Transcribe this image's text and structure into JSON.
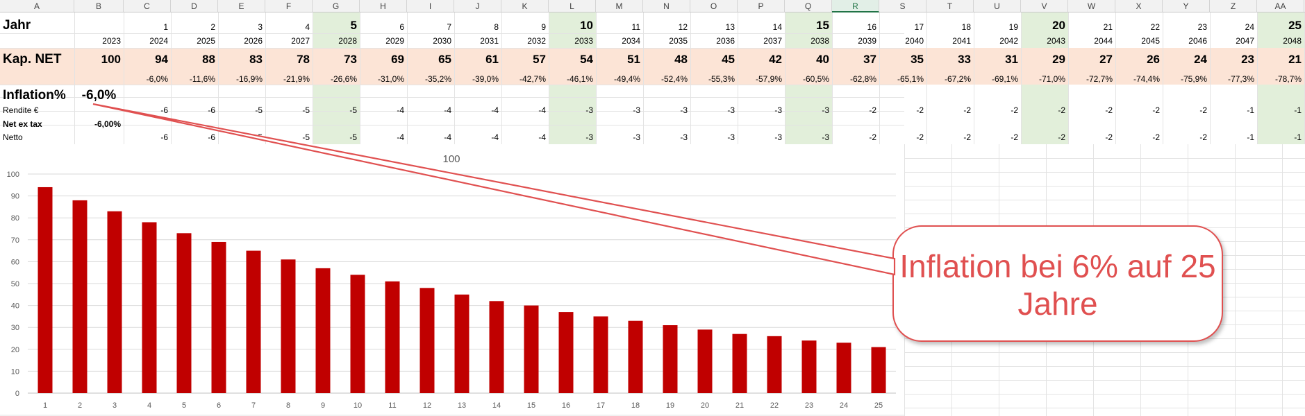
{
  "sheet": {
    "columns": [
      "A",
      "B",
      "C",
      "D",
      "E",
      "F",
      "G",
      "H",
      "I",
      "J",
      "K",
      "L",
      "M",
      "N",
      "O",
      "P",
      "Q",
      "R",
      "S",
      "T",
      "U",
      "V",
      "W",
      "X",
      "Y",
      "Z",
      "AA"
    ],
    "selected_column": "R",
    "highlight_columns": [
      "G",
      "L",
      "Q",
      "V",
      "AA"
    ],
    "row_jahr": {
      "label": "Jahr",
      "indices": [
        "1",
        "2",
        "3",
        "4",
        "5",
        "6",
        "7",
        "8",
        "9",
        "10",
        "11",
        "12",
        "13",
        "14",
        "15",
        "16",
        "17",
        "18",
        "19",
        "20",
        "21",
        "22",
        "23",
        "24",
        "25"
      ],
      "bold_indices": [
        "5",
        "10",
        "15",
        "20",
        "25"
      ]
    },
    "row_years": [
      "2023",
      "2024",
      "2025",
      "2026",
      "2027",
      "2028",
      "2029",
      "2030",
      "2031",
      "2032",
      "2033",
      "2034",
      "2035",
      "2036",
      "2037",
      "2038",
      "2039",
      "2040",
      "2041",
      "2042",
      "2043",
      "2044",
      "2045",
      "2046",
      "2047",
      "2048"
    ],
    "row_kap": {
      "label": "Kap. NET",
      "values": [
        "100",
        "94",
        "88",
        "83",
        "78",
        "73",
        "69",
        "65",
        "61",
        "57",
        "54",
        "51",
        "48",
        "45",
        "42",
        "40",
        "37",
        "35",
        "33",
        "31",
        "29",
        "27",
        "26",
        "24",
        "23",
        "21"
      ]
    },
    "row_pct": [
      "-6,0%",
      "-11,6%",
      "-16,9%",
      "-21,9%",
      "-26,6%",
      "-31,0%",
      "-35,2%",
      "-39,0%",
      "-42,7%",
      "-46,1%",
      "-49,4%",
      "-52,4%",
      "-55,3%",
      "-57,9%",
      "-60,5%",
      "-62,8%",
      "-65,1%",
      "-67,2%",
      "-69,1%",
      "-71,0%",
      "-72,7%",
      "-74,4%",
      "-75,9%",
      "-77,3%",
      "-78,7%"
    ],
    "row_inflation": {
      "label": "Inflation%",
      "value": "-6,0%"
    },
    "row_rendite": {
      "label": "Rendite €",
      "values": [
        "-6",
        "-6",
        "-5",
        "-5",
        "-5",
        "-4",
        "-4",
        "-4",
        "-4",
        "-3",
        "-3",
        "-3",
        "-3",
        "-3",
        "-3",
        "-2",
        "-2",
        "-2",
        "-2",
        "-2",
        "-2",
        "-2",
        "-2",
        "-1",
        "-1"
      ]
    },
    "row_netex": {
      "label": "Net ex tax",
      "value": "-6,00%"
    },
    "row_netto": {
      "label": "Netto",
      "values": [
        "-6",
        "-6",
        "-5",
        "-5",
        "-5",
        "-4",
        "-4",
        "-4",
        "-4",
        "-3",
        "-3",
        "-3",
        "-3",
        "-3",
        "-3",
        "-2",
        "-2",
        "-2",
        "-2",
        "-2",
        "-2",
        "-2",
        "-2",
        "-1",
        "-1"
      ]
    }
  },
  "chart_data": {
    "type": "bar",
    "title": "100",
    "categories": [
      "1",
      "2",
      "3",
      "4",
      "5",
      "6",
      "7",
      "8",
      "9",
      "10",
      "11",
      "12",
      "13",
      "14",
      "15",
      "16",
      "17",
      "18",
      "19",
      "20",
      "21",
      "22",
      "23",
      "24",
      "25"
    ],
    "values": [
      94,
      88,
      83,
      78,
      73,
      69,
      65,
      61,
      57,
      54,
      51,
      48,
      45,
      42,
      40,
      37,
      35,
      33,
      31,
      29,
      27,
      26,
      24,
      23,
      21
    ],
    "ylim": [
      0,
      100
    ],
    "yticks": [
      "0",
      "10",
      "20",
      "30",
      "40",
      "50",
      "60",
      "70",
      "80",
      "90",
      "100"
    ],
    "bar_color": "#c00000",
    "grid": true
  },
  "callout": {
    "text": "Inflation bei 6% auf 25 Jahre",
    "color": "#e05050"
  },
  "colors": {
    "kap_band": "#fce4d6",
    "highlight_col": "#e2efda",
    "selected_header": "#217346"
  }
}
